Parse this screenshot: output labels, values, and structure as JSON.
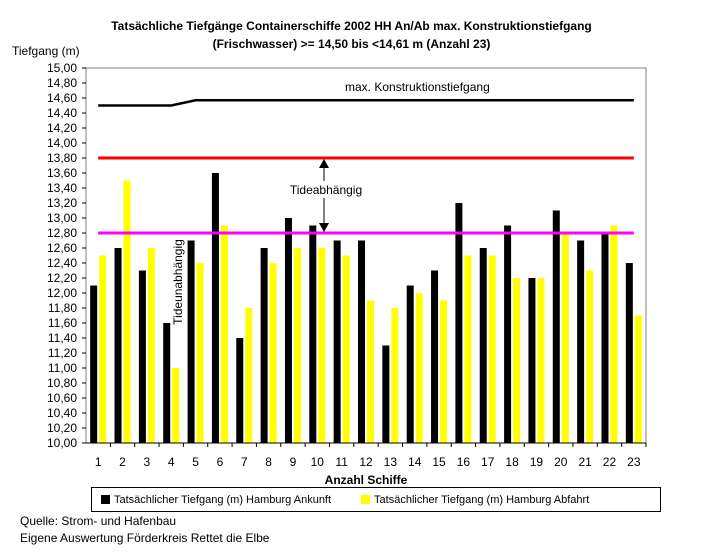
{
  "chart_data": {
    "type": "bar",
    "title_line1": "Tatsächliche Tiefgänge Containerschiffe 2002 HH An/Ab max. Konstruktionstiefgang",
    "title_line2": "(Frischwasser) >= 14,50 bis <14,61 m (Anzahl 23)",
    "ylabel": "Tiefgang (m)",
    "xlabel": "Anzahl Schiffe",
    "ylim": [
      10.0,
      15.0
    ],
    "ytick_step": 0.2,
    "categories": [
      "1",
      "2",
      "3",
      "4",
      "5",
      "6",
      "7",
      "8",
      "9",
      "10",
      "11",
      "12",
      "13",
      "14",
      "15",
      "16",
      "17",
      "18",
      "19",
      "20",
      "21",
      "22",
      "23"
    ],
    "series": [
      {
        "name": "Tatsächlicher Tiefgang (m) Hamburg Ankunft",
        "color": "#000000",
        "values": [
          12.1,
          12.6,
          12.3,
          11.6,
          12.7,
          13.6,
          11.4,
          12.6,
          13.0,
          12.9,
          12.7,
          12.7,
          11.3,
          12.1,
          12.3,
          13.2,
          12.6,
          12.9,
          12.2,
          13.1,
          12.7,
          12.8,
          12.4
        ]
      },
      {
        "name": "Tatsächlicher Tiefgang (m) Hamburg Abfahrt",
        "color": "#FFFF00",
        "values": [
          12.5,
          13.5,
          12.6,
          11.0,
          12.4,
          12.9,
          11.8,
          12.4,
          12.6,
          12.6,
          12.5,
          11.9,
          11.8,
          12.0,
          11.9,
          12.5,
          12.5,
          12.2,
          12.2,
          12.8,
          12.3,
          12.9,
          11.7
        ]
      }
    ],
    "reference_lines": [
      {
        "label": "max. Konstruktionstiefgang",
        "color": "#000000",
        "values": [
          14.5,
          14.5,
          14.5,
          14.5,
          14.57,
          14.57,
          14.57,
          14.57,
          14.57,
          14.57,
          14.57,
          14.57,
          14.57,
          14.57,
          14.57,
          14.57,
          14.57,
          14.57,
          14.57,
          14.57,
          14.57,
          14.57,
          14.57
        ]
      },
      {
        "label": "",
        "color": "#FF0000",
        "value": 13.8
      },
      {
        "label": "",
        "color": "#FF00FF",
        "value": 12.8
      }
    ],
    "annotations": {
      "tideabhaengig": "Tideabhängig",
      "tideunabhaengig": "Tideunabhängig"
    },
    "grid": false,
    "legend_position": "bottom"
  },
  "source_line1": "Quelle: Strom- und Hafenbau",
  "source_line2": "Eigene Auswertung Förderkreis Rettet die Elbe"
}
